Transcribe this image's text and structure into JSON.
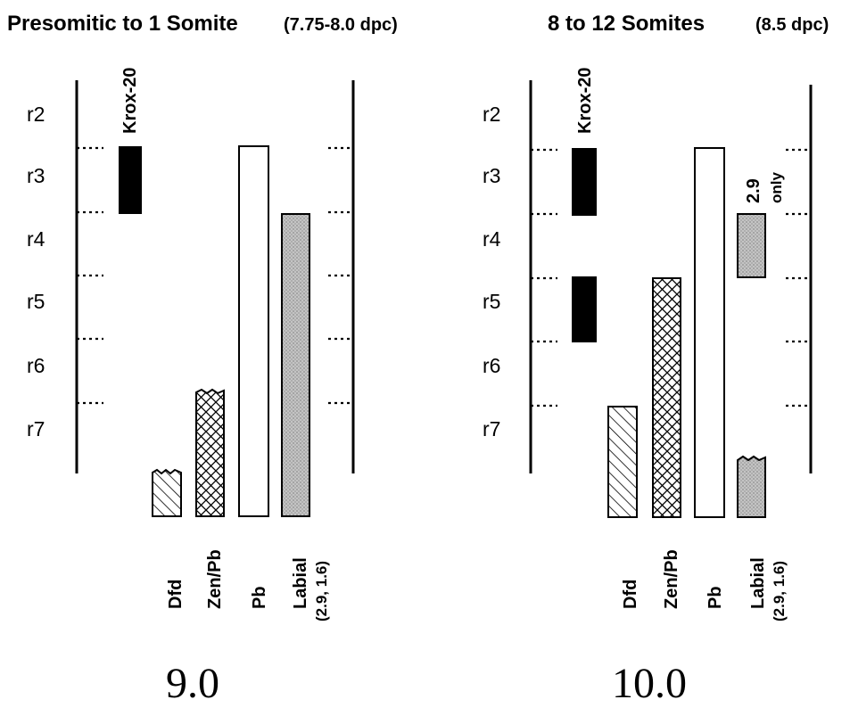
{
  "colors": {
    "ink": "#000000",
    "paper": "#ffffff",
    "stipple": "#c4c4c4"
  },
  "panels": [
    {
      "title_main": "Presomitic to 1 Somite",
      "title_sub": "(7.75-8.0 dpc)",
      "figure_number": "9.0",
      "rhombomeres": [
        "r2",
        "r3",
        "r4",
        "r5",
        "r6",
        "r7"
      ],
      "krox_label": "Krox-20",
      "columns": [
        {
          "label": "Dfd",
          "sublabel": ""
        },
        {
          "label": "Zen/Pb",
          "sublabel": ""
        },
        {
          "label": "Pb",
          "sublabel": ""
        },
        {
          "label": "Labial",
          "sublabel": "(2.9, 1.6)"
        }
      ],
      "annotation": ""
    },
    {
      "title_main": "8 to 12 Somites",
      "title_sub": "(8.5 dpc)",
      "figure_number": "10.0",
      "rhombomeres": [
        "r2",
        "r3",
        "r4",
        "r5",
        "r6",
        "r7"
      ],
      "krox_label": "Krox-20",
      "columns": [
        {
          "label": "Dfd",
          "sublabel": ""
        },
        {
          "label": "Zen/Pb",
          "sublabel": ""
        },
        {
          "label": "Pb",
          "sublabel": ""
        },
        {
          "label": "Labial",
          "sublabel": "(2.9, 1.6)"
        }
      ],
      "annotation_line1": "2.9",
      "annotation_line2": "only"
    }
  ]
}
